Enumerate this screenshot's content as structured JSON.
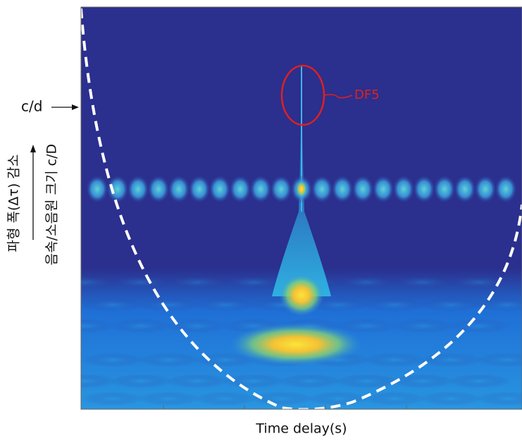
{
  "figure": {
    "x_label": "Time delay(s)",
    "marker_label": "c/d",
    "annotation": "DF5",
    "y_label_left": "파형 폭(Δτ) 감소",
    "y_label_right": "음속/소음원 크기 c/D"
  }
}
